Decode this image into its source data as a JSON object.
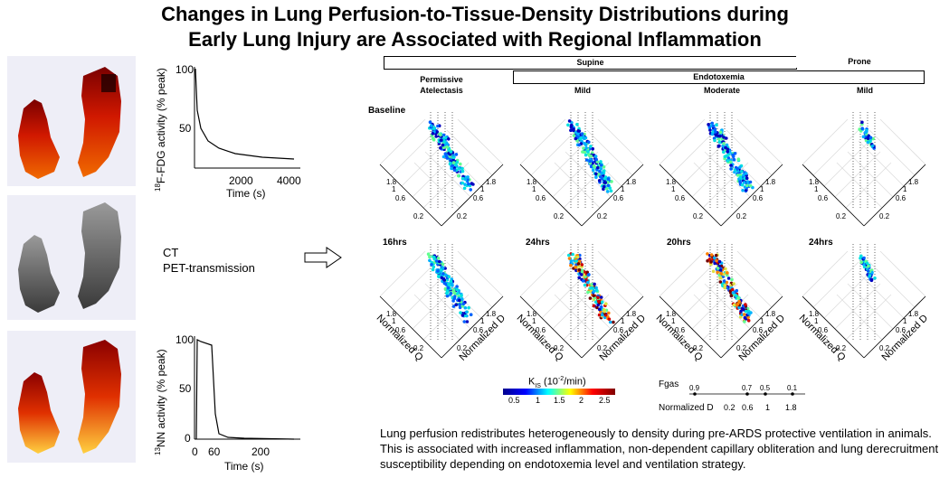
{
  "title_line1": "Changes in Lung Perfusion-to-Tissue-Density Distributions during",
  "title_line2": "Early Lung Injury are Associated with Regional Inflammation",
  "fdg_plot": {
    "ylabel_sup": "18",
    "ylabel_rest": "F-FDG activity (% peak)",
    "xlabel": "Time (s)",
    "yticks": [
      "100",
      "50"
    ],
    "xticks": [
      "2000",
      "4000"
    ]
  },
  "nn_plot": {
    "ylabel_sup": "13",
    "ylabel_rest": "NN activity (% peak)",
    "xlabel": "Time (s)",
    "yticks": [
      "100",
      "50",
      "0"
    ],
    "xticks": [
      "0",
      "60",
      "200"
    ]
  },
  "ct_labels": [
    "CT",
    "PET-transmission"
  ],
  "headers": {
    "supine": "Supine",
    "prone": "Prone",
    "endotoxemia": "Endotoxemia"
  },
  "columns": [
    "Permissive Atelectasis",
    "Mild",
    "Moderate",
    "Mild"
  ],
  "column_lines": [
    [
      "Permissive",
      "Atelectasis"
    ],
    [
      "Mild"
    ],
    [
      "Moderate"
    ],
    [
      "Mild"
    ]
  ],
  "row1_labels": [
    "Baseline"
  ],
  "row2_labels": [
    "16hrs",
    "24hrs",
    "20hrs",
    "24hrs"
  ],
  "axis_ticks": {
    "left": [
      "1.8",
      "1",
      "0.6",
      "0.2"
    ],
    "right": [
      "1.8",
      "1",
      "0.6",
      "0.2"
    ]
  },
  "axis_labels": {
    "q": "Normalized Q",
    "d": "Normalized D"
  },
  "colorbar": {
    "label_main": "K",
    "label_sub": "IS",
    "label_unit": " (10",
    "label_exp": "-2",
    "label_end": "/min)",
    "ticks": [
      "0.5",
      "1",
      "1.5",
      "2",
      "2.5"
    ]
  },
  "fgas": {
    "label": "Fgas",
    "top_ticks": [
      "0.9",
      "0.7",
      "0.5",
      "0.1"
    ],
    "bottom_label": "Normalized D",
    "bottom_ticks": [
      "0.2",
      "0.6",
      "1",
      "1.8"
    ]
  },
  "caption": "Lung perfusion redistributes heterogeneously to density during pre-ARDS protective ventilation in animals. This is associated with increased inflammation, non-dependent capillary obliteration and lung derecruitment susceptibility depending on endotoxemia level and ventilation strategy.",
  "colors": {
    "accent": "#000000"
  }
}
